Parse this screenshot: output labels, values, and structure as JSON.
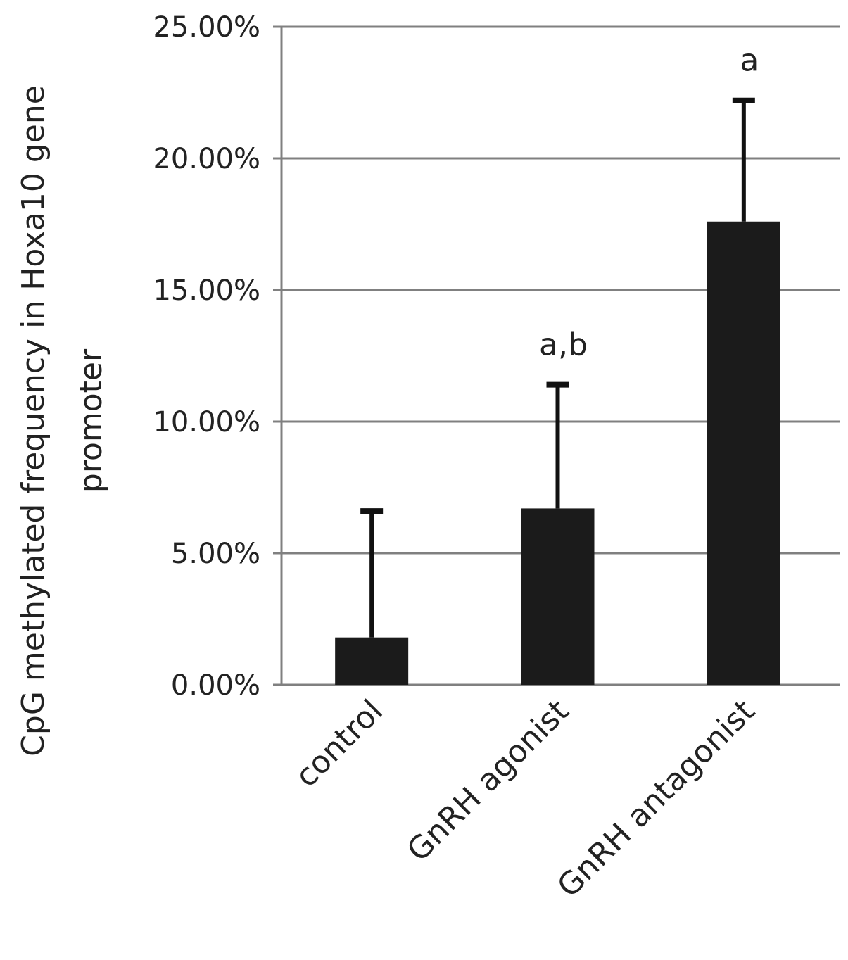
{
  "chart_data": {
    "type": "bar",
    "categories": [
      "control",
      "GnRH agonist",
      "GnRH antagonist"
    ],
    "values": [
      1.8,
      6.7,
      17.6
    ],
    "error_upper": [
      6.6,
      11.4,
      22.2
    ],
    "annotations": [
      "",
      "a,b",
      "a"
    ],
    "ylabel_lines": [
      "CpG methylated frequency in Hoxa10 gene",
      "promoter"
    ],
    "ylim": [
      0,
      25
    ],
    "yticks": [
      0,
      5,
      10,
      15,
      20,
      25
    ],
    "ytick_labels": [
      "0.00%",
      "5.00%",
      "10.00%",
      "15.00%",
      "20.00%",
      "25.00%"
    ],
    "grid": true,
    "legend": "none",
    "colors": {
      "bar": "#1b1b1b",
      "grid": "#808080",
      "error_bar": "#111111"
    }
  }
}
